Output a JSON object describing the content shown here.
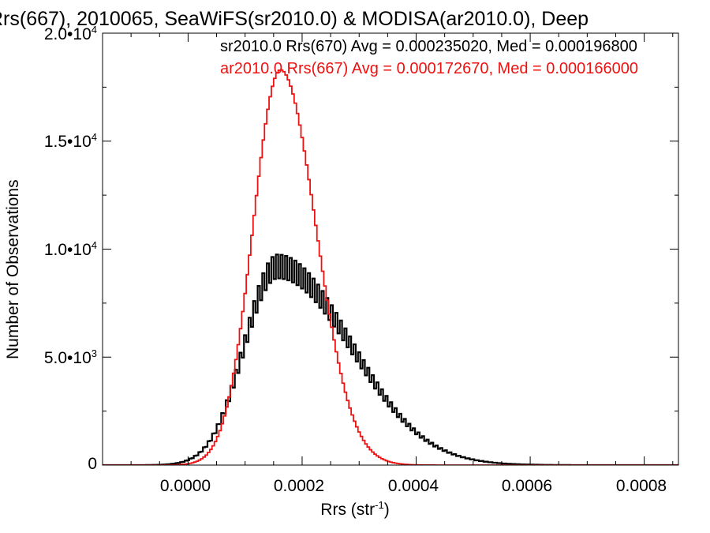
{
  "chart_data": {
    "type": "histogram",
    "title": "Rrs(667), 2010065, SeaWiFS(sr2010.0) & MODISA(ar2010.0), Deep",
    "xlabel_main": "Rrs (str",
    "xlabel_sup": "-1",
    "xlabel_end": ")",
    "ylabel": "Number of Observations",
    "xlim": [
      -0.00015,
      0.00086
    ],
    "ylim": [
      0,
      20000
    ],
    "grid": false,
    "x_ticks": [
      "0.0000",
      "0.0002",
      "0.0004",
      "0.0006",
      "0.0008"
    ],
    "x_tick_values": [
      0,
      0.0002,
      0.0004,
      0.0006,
      0.0008
    ],
    "y_ticks": [
      {
        "value": 0,
        "mantissa": "0",
        "exponent": ""
      },
      {
        "value": 5000,
        "mantissa": "5.0•10",
        "exponent": "3"
      },
      {
        "value": 10000,
        "mantissa": "1.0•10",
        "exponent": "4"
      },
      {
        "value": 15000,
        "mantissa": "1.5•10",
        "exponent": "4"
      },
      {
        "value": 20000,
        "mantissa": "2.0•10",
        "exponent": "4"
      }
    ],
    "legend": [
      {
        "text": "sr2010.0 Rrs(670) Avg = 0.000235020, Med = 0.000196800",
        "color": "#000000"
      },
      {
        "text": "ar2010.0 Rrs(667) Avg = 0.000172670, Med = 0.000166000",
        "color": "#ee1111"
      }
    ],
    "series": [
      {
        "name": "sr2010.0 Rrs(670)",
        "color": "#000000",
        "bin_start": -0.00015,
        "bin_width": 4e-06,
        "peak_x": 0.000157,
        "peak_y": 9200,
        "sigma_left": 5.8e-05,
        "sigma_right": 0.000128,
        "comb_amplitude": 0.06
      },
      {
        "name": "ar2010.0 Rrs(667)",
        "color": "#ee1111",
        "bin_start": -0.00015,
        "bin_width": 4e-06,
        "peak_x": 0.000162,
        "peak_y": 18300,
        "sigma_left": 4.8e-05,
        "sigma_right": 6.2e-05,
        "comb_amplitude": 0.0
      }
    ]
  }
}
